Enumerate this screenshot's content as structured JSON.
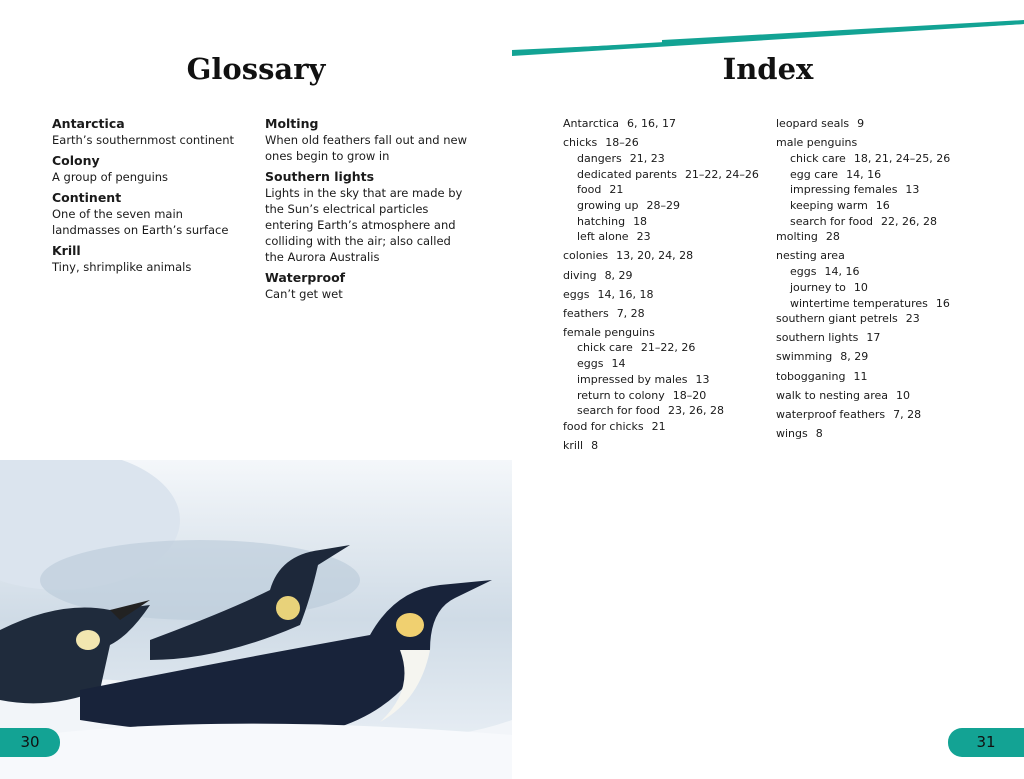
{
  "glossary": {
    "title": "Glossary",
    "columns": [
      [
        {
          "term": "Antarctica",
          "def": "Earth’s southernmost continent"
        },
        {
          "term": "Colony",
          "def": "A group of penguins"
        },
        {
          "term": "Continent",
          "def": "One of the seven main landmasses on Earth’s surface"
        },
        {
          "term": "Krill",
          "def": "Tiny, shrimplike animals"
        }
      ],
      [
        {
          "term": "Molting",
          "def": "When old feathers fall out and new ones begin to grow in"
        },
        {
          "term": "Southern lights",
          "def": "Lights in the sky that are made by the Sun’s electrical particles entering Earth’s atmosphere and colliding with the air; also called the Aurora Australis"
        },
        {
          "term": "Waterproof",
          "def": "Can’t get wet"
        }
      ]
    ]
  },
  "index": {
    "title": "Index",
    "columns": [
      [
        {
          "term": "Antarctica",
          "pages": "6, 16, 17"
        },
        {
          "term": "chicks",
          "pages": "18–26",
          "sub": [
            {
              "term": "dangers",
              "pages": "21, 23"
            },
            {
              "term": "dedicated parents",
              "pages": "21–22, 24–26"
            },
            {
              "term": "food",
              "pages": "21"
            },
            {
              "term": "growing up",
              "pages": "28–29"
            },
            {
              "term": "hatching",
              "pages": "18"
            },
            {
              "term": "left alone",
              "pages": "23"
            }
          ]
        },
        {
          "term": "colonies",
          "pages": "13, 20, 24, 28"
        },
        {
          "term": "diving",
          "pages": "8, 29"
        },
        {
          "term": "eggs",
          "pages": "14, 16, 18"
        },
        {
          "term": "feathers",
          "pages": "7, 28"
        },
        {
          "term": "female penguins",
          "pages": "",
          "sub": [
            {
              "term": "chick care",
              "pages": "21–22, 26"
            },
            {
              "term": "eggs",
              "pages": "14"
            },
            {
              "term": "impressed by males",
              "pages": "13"
            },
            {
              "term": "return to colony",
              "pages": "18–20"
            },
            {
              "term": "search for food",
              "pages": "23, 26, 28"
            }
          ]
        },
        {
          "term": "food for chicks",
          "pages": "21",
          "tight": true
        },
        {
          "term": "krill",
          "pages": "8"
        }
      ],
      [
        {
          "term": "leopard seals",
          "pages": "9"
        },
        {
          "term": "male penguins",
          "pages": "",
          "sub": [
            {
              "term": "chick care",
              "pages": "18, 21, 24–25, 26"
            },
            {
              "term": "egg care",
              "pages": "14, 16"
            },
            {
              "term": "impressing females",
              "pages": "13"
            },
            {
              "term": "keeping warm",
              "pages": "16"
            },
            {
              "term": "search for food",
              "pages": "22, 26, 28"
            }
          ]
        },
        {
          "term": "molting",
          "pages": "28",
          "tight": true
        },
        {
          "term": "nesting area",
          "pages": "",
          "sub": [
            {
              "term": "eggs",
              "pages": "14, 16"
            },
            {
              "term": "journey to",
              "pages": "10"
            },
            {
              "term": "wintertime temperatures",
              "pages": "16"
            }
          ]
        },
        {
          "term": "southern giant petrels",
          "pages": "23",
          "tight": true
        },
        {
          "term": "southern lights",
          "pages": "17"
        },
        {
          "term": "swimming",
          "pages": "8, 29"
        },
        {
          "term": "tobogganing",
          "pages": "11"
        },
        {
          "term": "walk to nesting area",
          "pages": "10"
        },
        {
          "term": "waterproof feathers",
          "pages": "7, 28"
        },
        {
          "term": "wings",
          "pages": "8"
        }
      ]
    ]
  },
  "page_numbers": {
    "left": "30",
    "right": "31"
  },
  "colors": {
    "accent": "#13a394"
  }
}
